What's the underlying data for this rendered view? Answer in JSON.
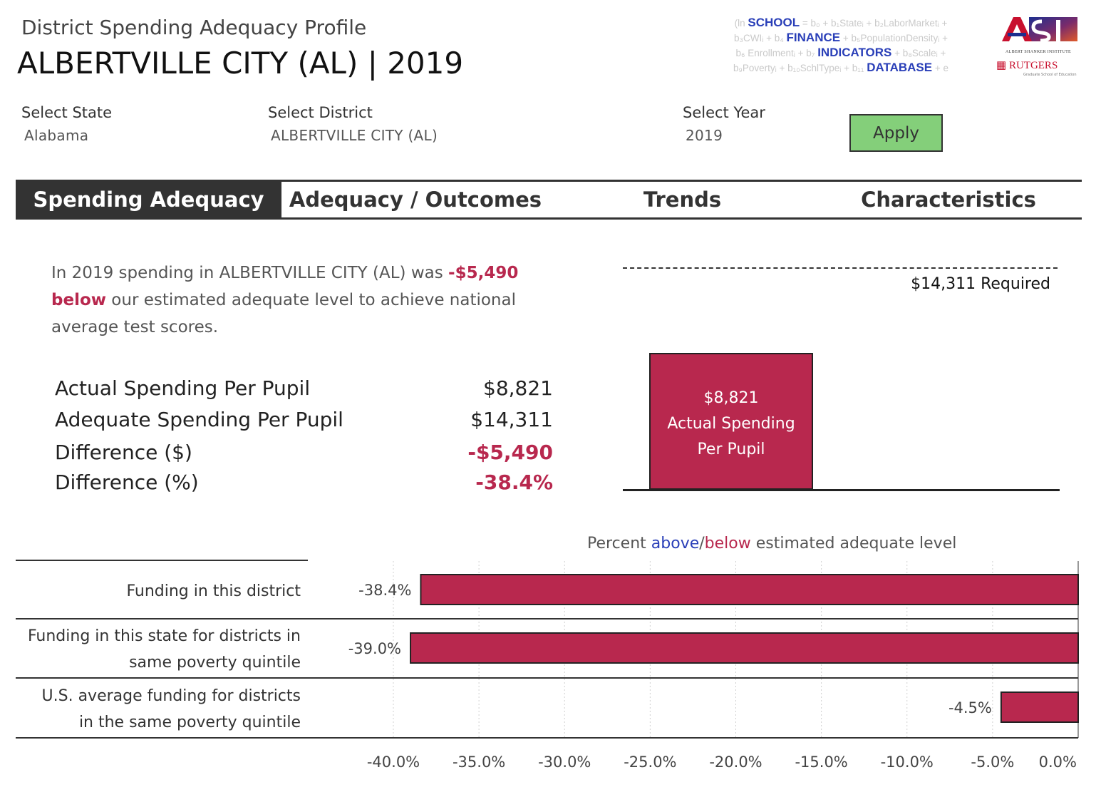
{
  "header": {
    "subtitle": "District Spending Adequacy Profile",
    "title": "ALBERTVILLE CITY (AL) | 2019"
  },
  "logos": {
    "sfid": {
      "line1_pre": "(ln",
      "line1_word": "SCHOOL",
      "line1_post": "= b₀ + b₁Stateᵢ + b₂LaborMarketᵢ +",
      "line2_pre": "b₃CWIᵢ + b₄",
      "line2_word": "FINANCE",
      "line2_post": "+ b₅PopulationDensityᵢ +",
      "line3_pre": "b₆ Enrollmentᵢ + b₇",
      "line3_word": "INDICATORS",
      "line3_post": "+ b₈Scaleᵢ +",
      "line4_pre": "b₉Povertyᵢ + b₁₀SchlTypeᵢ + b₁₁",
      "line4_word": "DATABASE",
      "line4_post": "+ e"
    },
    "asi": {
      "mark": "ASI",
      "subtext": "ALBERT SHANKER INSTITUTE"
    },
    "rutgers": {
      "name": "RUTGERS",
      "subtext": "Graduate School of Education"
    }
  },
  "filters": {
    "state": {
      "label": "Select State",
      "value": "Alabama"
    },
    "district": {
      "label": "Select District",
      "value": "ALBERTVILLE CITY (AL)"
    },
    "year": {
      "label": "Select Year",
      "value": "2019"
    },
    "apply_label": "Apply"
  },
  "tabs": [
    {
      "label": "Spending Adequacy",
      "active": true
    },
    {
      "label": "Adequacy / Outcomes",
      "active": false
    },
    {
      "label": "Trends",
      "active": false
    },
    {
      "label": "Characteristics",
      "active": false
    }
  ],
  "narrative": {
    "part1": "In 2019 spending in ALBERTVILLE CITY (AL) was ",
    "amount": "-$5,490",
    "direction": "below",
    "part2": " our estimated adequate level to achieve national average test scores."
  },
  "metrics": [
    {
      "label": "Actual Spending Per Pupil",
      "value": "$8,821",
      "highlight": false
    },
    {
      "label": "Adequate Spending Per Pupil",
      "value": "$14,311",
      "highlight": false
    },
    {
      "label": "Difference ($)",
      "value": "-$5,490",
      "highlight": true
    },
    {
      "label": "Difference (%)",
      "value": "-38.4%",
      "highlight": true
    }
  ],
  "spending_chart": {
    "required_label": "$14,311 Required",
    "bar_value_label": "$8,821",
    "bar_caption_line1": "Actual Spending",
    "bar_caption_line2": "Per Pupil",
    "bar_color": "#b8284e"
  },
  "chart_data": [
    {
      "type": "bar",
      "categories": [
        "Actual Spending Per Pupil"
      ],
      "values": [
        8821
      ],
      "reference_line": {
        "value": 14311,
        "label": "$14,311 Required"
      }
    },
    {
      "type": "bar",
      "orientation": "horizontal",
      "title_parts": [
        "Percent ",
        "above",
        "/",
        "below",
        " estimated adequate level"
      ],
      "categories": [
        [
          "Funding in this district"
        ],
        [
          "Funding in this state for districts in",
          "same poverty quintile"
        ],
        [
          "U.S. average funding for districts",
          "in the same poverty quintile"
        ]
      ],
      "values": [
        -38.4,
        -39.0,
        -4.5
      ],
      "value_labels": [
        "-38.4%",
        "-39.0%",
        "-4.5%"
      ],
      "xlim": [
        -40.0,
        0.0
      ],
      "xticks": [
        -40.0,
        -35.0,
        -30.0,
        -25.0,
        -20.0,
        -15.0,
        -10.0,
        -5.0,
        0.0
      ],
      "xtick_labels": [
        "-40.0%",
        "-35.0%",
        "-30.0%",
        "-25.0%",
        "-20.0%",
        "-15.0%",
        "-10.0%",
        "-5.0%",
        "0.0%"
      ],
      "grid": true,
      "bar_color": "#b8284e",
      "above_color": "#2a3fb8",
      "below_color": "#b8284e"
    }
  ]
}
